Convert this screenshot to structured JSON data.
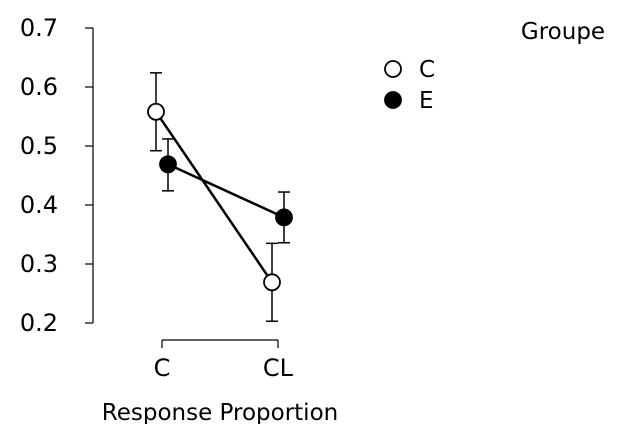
{
  "chart_data": {
    "type": "line",
    "xlabel": "Response Proportion",
    "ylabel": "",
    "categories": [
      "C",
      "CL"
    ],
    "ylim": [
      0.2,
      0.7
    ],
    "yticks": [
      0.2,
      0.3,
      0.4,
      0.5,
      0.6,
      0.7
    ],
    "ytick_labels": [
      "0.2",
      "0.3",
      "0.4",
      "0.5",
      "0.6",
      "0.7"
    ],
    "grid": false,
    "legend": {
      "title": "Groupe",
      "placement": "top-right"
    },
    "series": [
      {
        "name": "C",
        "marker": "open-circle",
        "values": [
          0.558,
          0.269
        ],
        "err_low": [
          0.492,
          0.203
        ],
        "err_high": [
          0.624,
          0.335
        ]
      },
      {
        "name": "E",
        "marker": "filled-circle",
        "values": [
          0.469,
          0.379
        ],
        "err_low": [
          0.424,
          0.336
        ],
        "err_high": [
          0.512,
          0.422
        ]
      }
    ],
    "colors": {
      "stroke": "#000000",
      "open_fill": "#ffffff",
      "filled_fill": "#000000"
    }
  }
}
